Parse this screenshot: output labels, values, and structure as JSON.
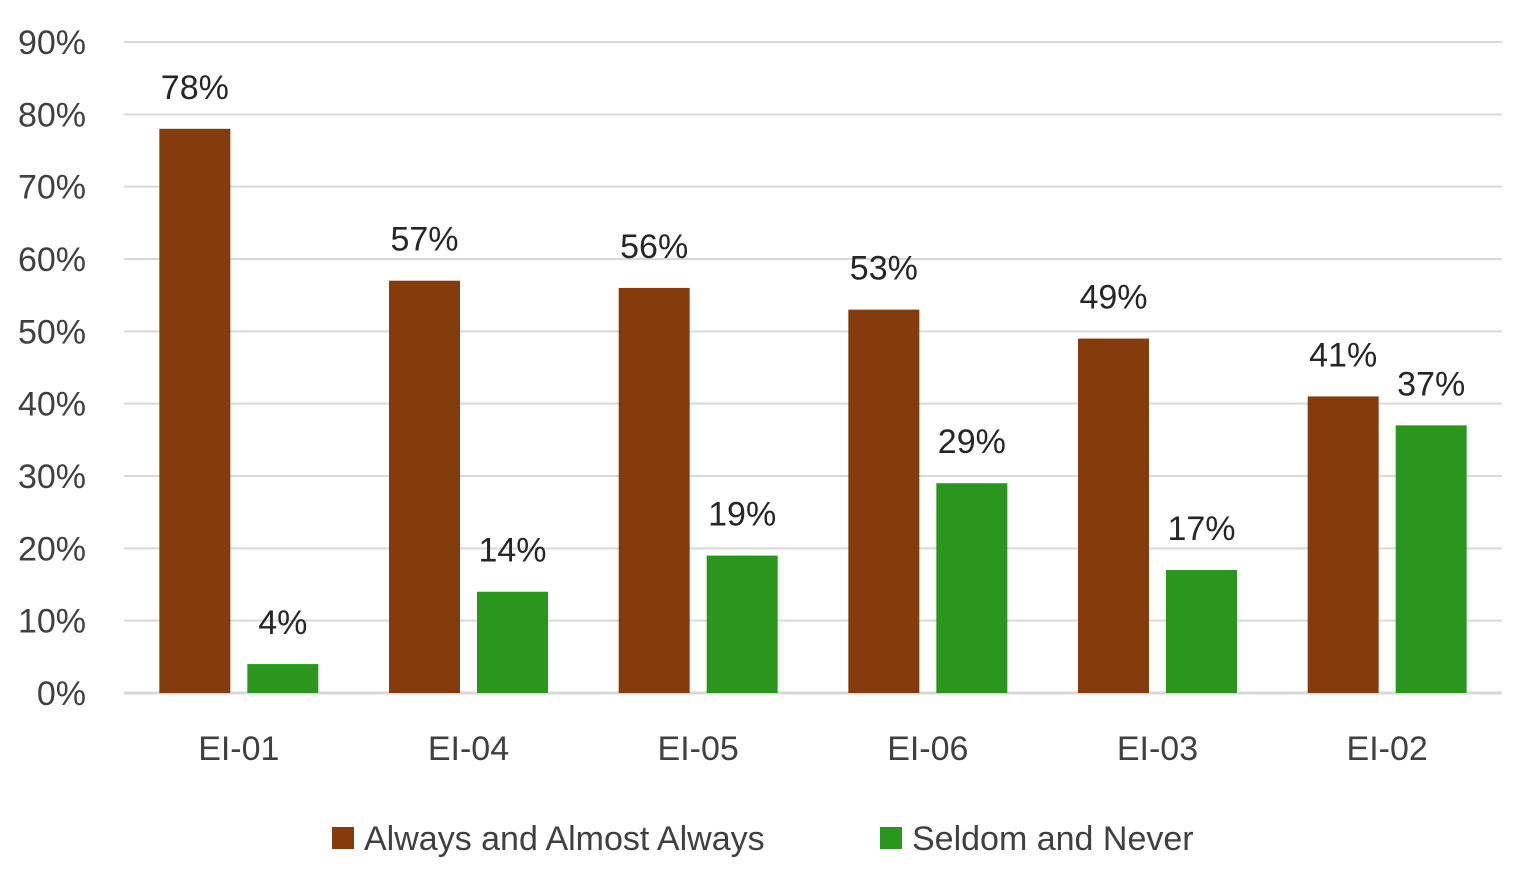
{
  "chart_data": {
    "type": "bar",
    "title": "",
    "xlabel": "",
    "ylabel": "",
    "ylim": [
      0,
      90
    ],
    "y_ticks": [
      0,
      10,
      20,
      30,
      40,
      50,
      60,
      70,
      80,
      90
    ],
    "y_tick_labels": [
      "0%",
      "10%",
      "20%",
      "30%",
      "40%",
      "50%",
      "60%",
      "70%",
      "80%",
      "90%"
    ],
    "grid": true,
    "legend_position": "bottom",
    "categories": [
      "EI-01",
      "EI-04",
      "EI-05",
      "EI-06",
      "EI-03",
      "EI-02"
    ],
    "series": [
      {
        "name": "Always and Almost Always",
        "color": "#843c0c",
        "values": [
          78,
          57,
          56,
          53,
          49,
          41
        ],
        "labels": [
          "78%",
          "57%",
          "56%",
          "53%",
          "49%",
          "41%"
        ]
      },
      {
        "name": "Seldom and Never",
        "color": "#2a961e",
        "values": [
          4,
          14,
          19,
          29,
          17,
          37
        ],
        "labels": [
          "4%",
          "14%",
          "19%",
          "29%",
          "17%",
          "37%"
        ]
      }
    ]
  },
  "colors": {
    "grid": "#d9d9d9",
    "axis_text": "#404040",
    "label_text": "#262626"
  }
}
